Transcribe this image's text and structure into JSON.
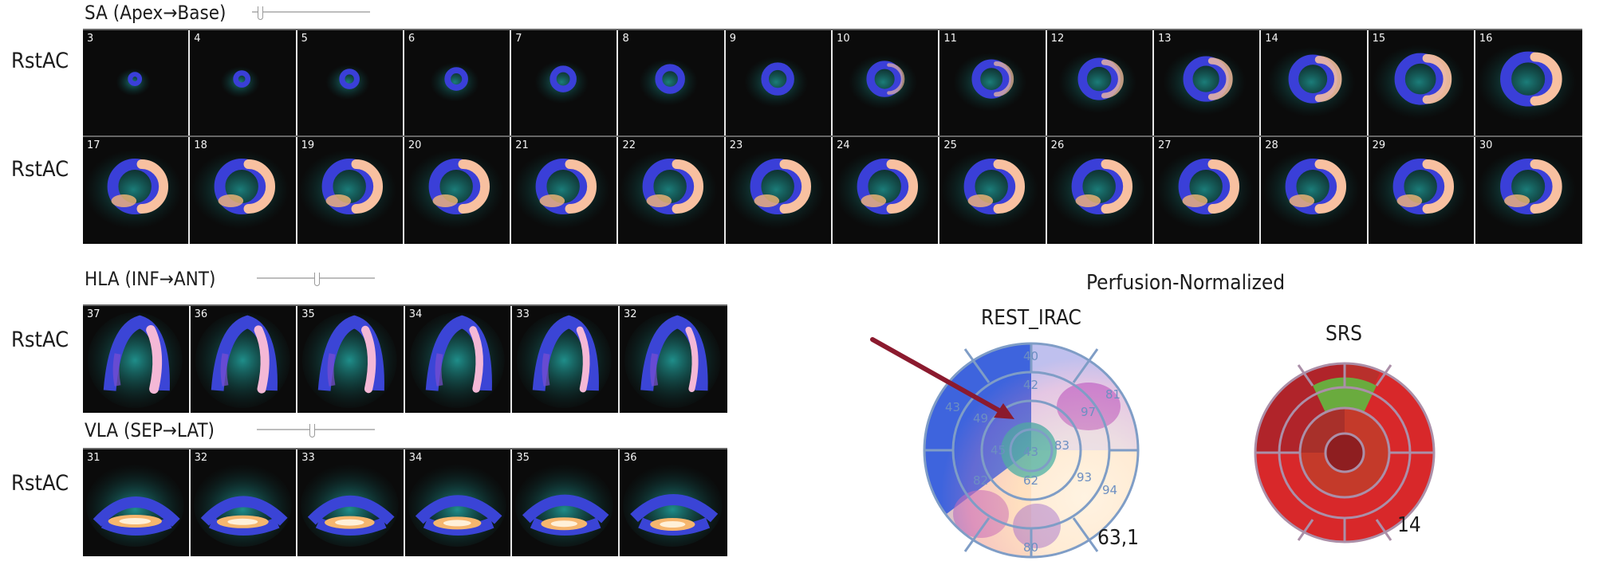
{
  "sa": {
    "title": "SA (Apex→Base)",
    "row_labels": [
      "RstAC",
      "RstAC"
    ],
    "row1": [
      "3",
      "4",
      "5",
      "6",
      "7",
      "8",
      "9",
      "10",
      "11",
      "12",
      "13",
      "14",
      "15",
      "16"
    ],
    "row2": [
      "17",
      "18",
      "19",
      "20",
      "21",
      "22",
      "23",
      "24",
      "25",
      "26",
      "27",
      "28",
      "29",
      "30"
    ]
  },
  "hla": {
    "title": "HLA (INF→ANT)",
    "row_label": "RstAC",
    "tiles": [
      "37",
      "36",
      "35",
      "34",
      "33",
      "32"
    ]
  },
  "vla": {
    "title": "VLA (SEP→LAT)",
    "row_label": "RstAC",
    "tiles": [
      "31",
      "32",
      "33",
      "34",
      "35",
      "36"
    ]
  },
  "polar": {
    "header": "Perfusion-Normalized",
    "rest": {
      "title": "REST_IRAC",
      "value": "63,1",
      "segments": {
        "ring1": [
          "40"
        ],
        "ring2": [
          "42",
          "81",
          "97",
          "93",
          "94",
          "80",
          "82",
          "43",
          "49"
        ],
        "ring3": [
          "43",
          "83",
          "62",
          "45"
        ]
      }
    },
    "srs": {
      "title": "SRS",
      "value": "14"
    }
  },
  "colors": {
    "background": "#ffffff",
    "tile_bg": "#0b0b0b",
    "arrow": "#8b1a2e",
    "srs_red": "#d8282a",
    "srs_green": "#5aa83a"
  }
}
